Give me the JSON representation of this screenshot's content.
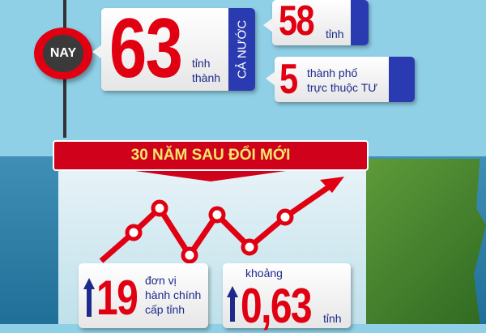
{
  "now_badge": "NAY",
  "national": {
    "number": "63",
    "unit_line1": "tỉnh",
    "unit_line2": "thành",
    "side_label": "CẢ NƯỚC"
  },
  "provinces": {
    "number": "58",
    "unit": "tỉnh"
  },
  "cities": {
    "number": "5",
    "unit_line1": "thành phố",
    "unit_line2": "trực thuộc TƯ"
  },
  "banner": "30 NĂM SAU ĐỔI MỚI",
  "stat_units": {
    "arrow": "up",
    "number": "19",
    "line1": "đơn vị",
    "line2": "hành chính",
    "line3": "cấp tỉnh"
  },
  "stat_avg": {
    "prefix": "khoảng",
    "arrow": "up",
    "number": "0,63",
    "unit": "tỉnh"
  },
  "colors": {
    "red": "#e00012",
    "blue": "#2a3ab0",
    "banner_text": "#f6e66c"
  }
}
